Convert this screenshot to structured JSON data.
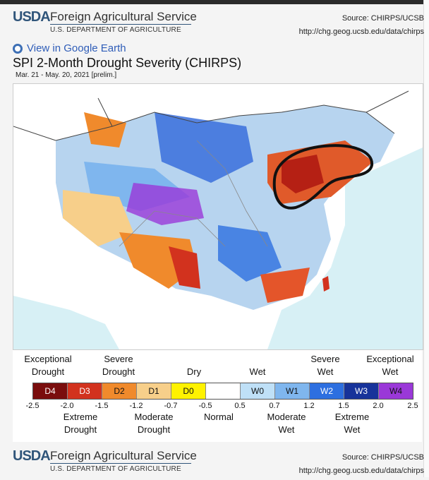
{
  "header": {
    "logo": "USDA",
    "agency": "Foreign Agricultural Service",
    "dept": "U.S. DEPARTMENT OF AGRICULTURE",
    "source": "Source: CHIRPS/UCSB",
    "url": "http://chg.geog.ucsb.edu/data/chirps"
  },
  "google_earth_link": "View in Google Earth",
  "title": "SPI 2-Month Drought Severity (CHIRPS)",
  "subtitle": "Mar. 21 - May. 20, 2021 [prelim.]",
  "legend": {
    "top_labels": [
      {
        "text": "Exceptional\nDrought"
      },
      {
        "text": "Severe\nDrought"
      },
      {
        "text": "Dry"
      },
      {
        "text": "Wet"
      },
      {
        "text": "Severe\nWet"
      },
      {
        "text": "Exceptional\nWet"
      }
    ],
    "classes": [
      {
        "code": "D4",
        "color": "#7a0d0d",
        "text_color": "#ffffff"
      },
      {
        "code": "D3",
        "color": "#d2321e",
        "text_color": "#ffffff"
      },
      {
        "code": "D2",
        "color": "#f08a2c",
        "text_color": "#111111"
      },
      {
        "code": "D1",
        "color": "#f7cf8a",
        "text_color": "#111111"
      },
      {
        "code": "D0",
        "color": "#fff200",
        "text_color": "#111111"
      },
      {
        "code": "",
        "color": "#ffffff",
        "text_color": "#111111"
      },
      {
        "code": "W0",
        "color": "#bfe0f7",
        "text_color": "#111111"
      },
      {
        "code": "W1",
        "color": "#7fb6ee",
        "text_color": "#111111"
      },
      {
        "code": "W2",
        "color": "#2d6fe0",
        "text_color": "#ffffff"
      },
      {
        "code": "W3",
        "color": "#17339a",
        "text_color": "#ffffff"
      },
      {
        "code": "W4",
        "color": "#9a38d8",
        "text_color": "#111111"
      }
    ],
    "ticks": [
      "-2.5",
      "-2.0",
      "-1.5",
      "-1.2",
      "-0.7",
      "-0.5",
      "0.5",
      "0.7",
      "1.2",
      "1.5",
      "2.0",
      "2.5"
    ],
    "bottom_labels": [
      {
        "text": "Extreme\nDrought"
      },
      {
        "text": "Moderate\nDrought"
      },
      {
        "text": "Normal"
      },
      {
        "text": "Moderate\nWet"
      },
      {
        "text": "Extreme\nWet"
      }
    ]
  },
  "footer": {
    "logo": "USDA",
    "agency": "Foreign Agricultural Service",
    "dept": "U.S. DEPARTMENT OF AGRICULTURE",
    "source": "Source: CHIRPS/UCSB",
    "url": "http://chg.geog.ucsb.edu/data/chirps"
  },
  "colors": {
    "ocean": "#d7f0f5",
    "land_outside": "#ffffff",
    "brand_blue": "#30557a",
    "link_blue": "#2f5db8"
  },
  "icons": {
    "google_earth": "globe-icon"
  }
}
